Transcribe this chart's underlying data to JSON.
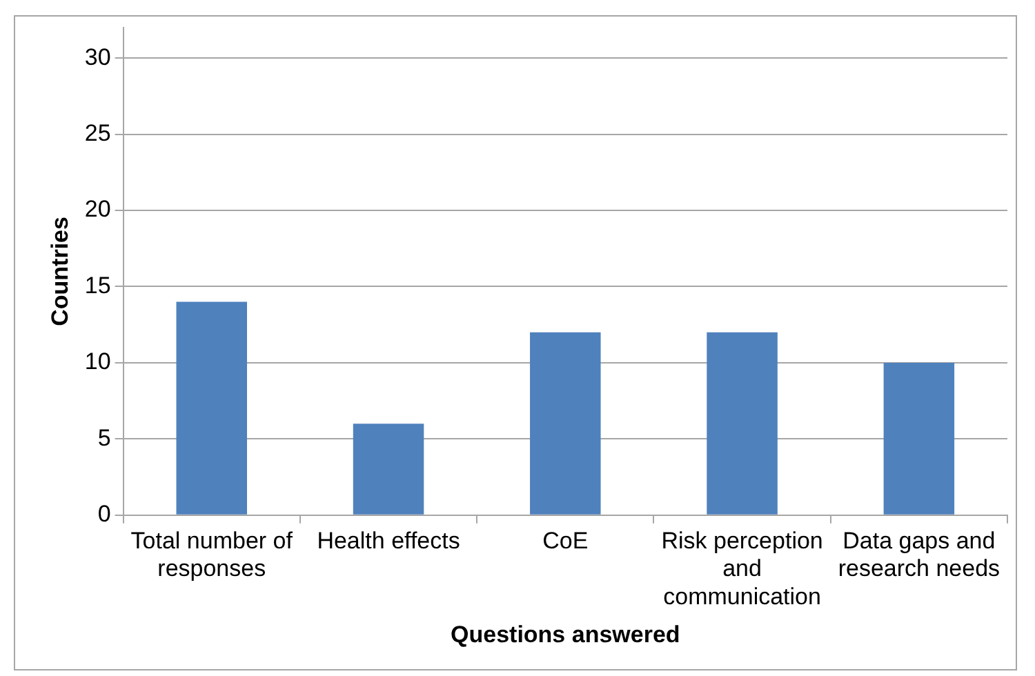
{
  "chart_data": {
    "type": "bar",
    "xlabel": "Questions answered",
    "ylabel": "Countries",
    "categories": [
      "Total number of responses",
      "Health effects",
      "CoE",
      "Risk perception and communication",
      "Data gaps and research needs"
    ],
    "values": [
      14,
      6,
      12,
      12,
      10
    ],
    "color": "#4f81bd",
    "ylim": [
      0,
      32
    ],
    "yticks": [
      0,
      5,
      10,
      15,
      20,
      25,
      30
    ],
    "grid": "y",
    "legend": false
  }
}
